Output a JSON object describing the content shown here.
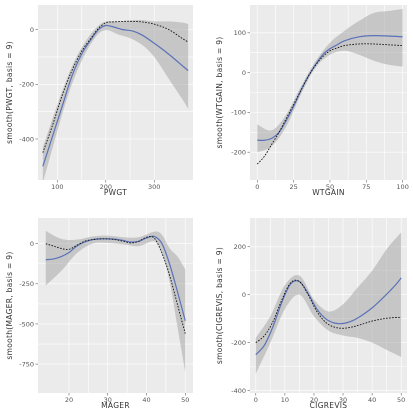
{
  "chart_data": [
    {
      "type": "line",
      "xlabel": "PWGT",
      "ylabel": "smooth(PWGT, basis = 9)",
      "xticks": [
        100,
        200,
        300
      ],
      "yticks": [
        0,
        -200,
        -400
      ],
      "xlim": [
        60,
        380
      ],
      "ylim": [
        -550,
        90
      ],
      "series": [
        {
          "style": "fitted",
          "x": [
            70,
            90,
            110,
            130,
            150,
            170,
            185,
            200,
            215,
            235,
            255,
            275,
            300,
            330,
            360,
            370
          ],
          "y": [
            -500,
            -390,
            -280,
            -170,
            -90,
            -35,
            0,
            15,
            10,
            0,
            -5,
            -20,
            -50,
            -90,
            -135,
            -150
          ]
        },
        {
          "style": "reference",
          "x": [
            70,
            90,
            110,
            130,
            150,
            170,
            185,
            200,
            215,
            235,
            255,
            275,
            300,
            330,
            360,
            370
          ],
          "y": [
            -450,
            -350,
            -240,
            -150,
            -80,
            -30,
            5,
            25,
            28,
            30,
            30,
            28,
            20,
            0,
            -35,
            -45
          ]
        }
      ],
      "band": {
        "x": [
          70,
          130,
          185,
          230,
          270,
          300,
          330,
          360,
          370
        ],
        "lower": [
          -560,
          -200,
          -15,
          -20,
          -50,
          -100,
          -180,
          -260,
          -290
        ],
        "upper": [
          -430,
          -135,
          15,
          30,
          35,
          30,
          30,
          25,
          20
        ]
      }
    },
    {
      "type": "line",
      "xlabel": "WTGAIN",
      "ylabel": "smooth(WTGAIN, basis = 9)",
      "xticks": [
        0,
        25,
        50,
        75,
        100
      ],
      "yticks": [
        100,
        0,
        -100,
        -200
      ],
      "xlim": [
        -5,
        103
      ],
      "ylim": [
        -270,
        170
      ],
      "series": [
        {
          "style": "fitted",
          "x": [
            0,
            5,
            10,
            15,
            20,
            25,
            30,
            35,
            40,
            45,
            50,
            55,
            60,
            70,
            80,
            90,
            100
          ],
          "y": [
            -170,
            -170,
            -165,
            -150,
            -120,
            -85,
            -45,
            -10,
            20,
            45,
            60,
            70,
            80,
            90,
            93,
            92,
            90
          ]
        },
        {
          "style": "reference",
          "x": [
            0,
            5,
            10,
            15,
            20,
            25,
            30,
            35,
            40,
            45,
            50,
            55,
            60,
            70,
            80,
            90,
            100
          ],
          "y": [
            -230,
            -210,
            -180,
            -150,
            -115,
            -80,
            -45,
            -10,
            18,
            40,
            55,
            62,
            68,
            72,
            72,
            70,
            68
          ]
        }
      ],
      "band": {
        "x": [
          0,
          10,
          20,
          30,
          40,
          50,
          60,
          70,
          80,
          90,
          100
        ],
        "lower": [
          -200,
          -185,
          -135,
          -55,
          12,
          45,
          55,
          45,
          30,
          20,
          15
        ],
        "upper": [
          -130,
          -145,
          -105,
          -35,
          28,
          75,
          105,
          130,
          150,
          155,
          160
        ]
      }
    },
    {
      "type": "line",
      "xlabel": "MAGER",
      "ylabel": "smooth(MAGER, basis = 9)",
      "xticks": [
        20,
        30,
        40,
        50
      ],
      "yticks": [
        0,
        -250,
        -500,
        -750
      ],
      "xlim": [
        12,
        52
      ],
      "ylim": [
        -930,
        160
      ],
      "series": [
        {
          "style": "fitted",
          "x": [
            14,
            16,
            18,
            20,
            22,
            24,
            26,
            28,
            30,
            32,
            34,
            36,
            38,
            40,
            42,
            44,
            46,
            48,
            50
          ],
          "y": [
            -100,
            -95,
            -80,
            -55,
            -15,
            10,
            25,
            30,
            30,
            28,
            20,
            10,
            15,
            35,
            45,
            0,
            -130,
            -300,
            -480
          ]
        },
        {
          "style": "reference",
          "x": [
            14,
            16,
            18,
            20,
            22,
            24,
            26,
            28,
            30,
            32,
            34,
            36,
            38,
            40,
            42,
            44,
            46,
            48,
            50
          ],
          "y": [
            0,
            -15,
            -30,
            -35,
            -10,
            15,
            25,
            30,
            30,
            25,
            15,
            5,
            15,
            40,
            35,
            -60,
            -200,
            -380,
            -560
          ]
        }
      ],
      "band": {
        "x": [
          14,
          18,
          22,
          26,
          30,
          34,
          38,
          42,
          44,
          46,
          48,
          50
        ],
        "lower": [
          -260,
          -170,
          -60,
          0,
          5,
          -5,
          -15,
          15,
          -60,
          -240,
          -520,
          -800
        ],
        "upper": [
          80,
          30,
          25,
          45,
          50,
          40,
          40,
          75,
          55,
          -30,
          -80,
          -160
        ]
      }
    },
    {
      "type": "line",
      "xlabel": "CIGREVIS",
      "ylabel": "smooth(CIGREVIS, basis = 9)",
      "xticks": [
        0,
        10,
        20,
        30,
        40,
        50
      ],
      "yticks": [
        200,
        0,
        -200,
        -400
      ],
      "xlim": [
        -2,
        52
      ],
      "ylim": [
        -410,
        320
      ],
      "series": [
        {
          "style": "fitted",
          "x": [
            0,
            3,
            6,
            9,
            12,
            15,
            18,
            21,
            24,
            27,
            30,
            33,
            36,
            40,
            44,
            48,
            50
          ],
          "y": [
            -250,
            -210,
            -130,
            -30,
            45,
            55,
            5,
            -60,
            -100,
            -118,
            -120,
            -110,
            -90,
            -55,
            -10,
            40,
            70
          ]
        },
        {
          "style": "reference",
          "x": [
            0,
            3,
            6,
            9,
            12,
            15,
            18,
            21,
            24,
            27,
            30,
            33,
            36,
            40,
            44,
            48,
            50
          ],
          "y": [
            -200,
            -170,
            -110,
            -20,
            50,
            55,
            0,
            -70,
            -115,
            -135,
            -140,
            -135,
            -125,
            -110,
            -100,
            -95,
            -95
          ]
        }
      ],
      "band": {
        "x": [
          0,
          5,
          10,
          15,
          20,
          25,
          30,
          35,
          40,
          45,
          50
        ],
        "lower": [
          -330,
          -200,
          -60,
          0,
          -90,
          -150,
          -170,
          -180,
          -200,
          -230,
          -260
        ],
        "upper": [
          -180,
          -90,
          40,
          80,
          -20,
          -70,
          -40,
          30,
          100,
          190,
          260
        ]
      }
    }
  ]
}
